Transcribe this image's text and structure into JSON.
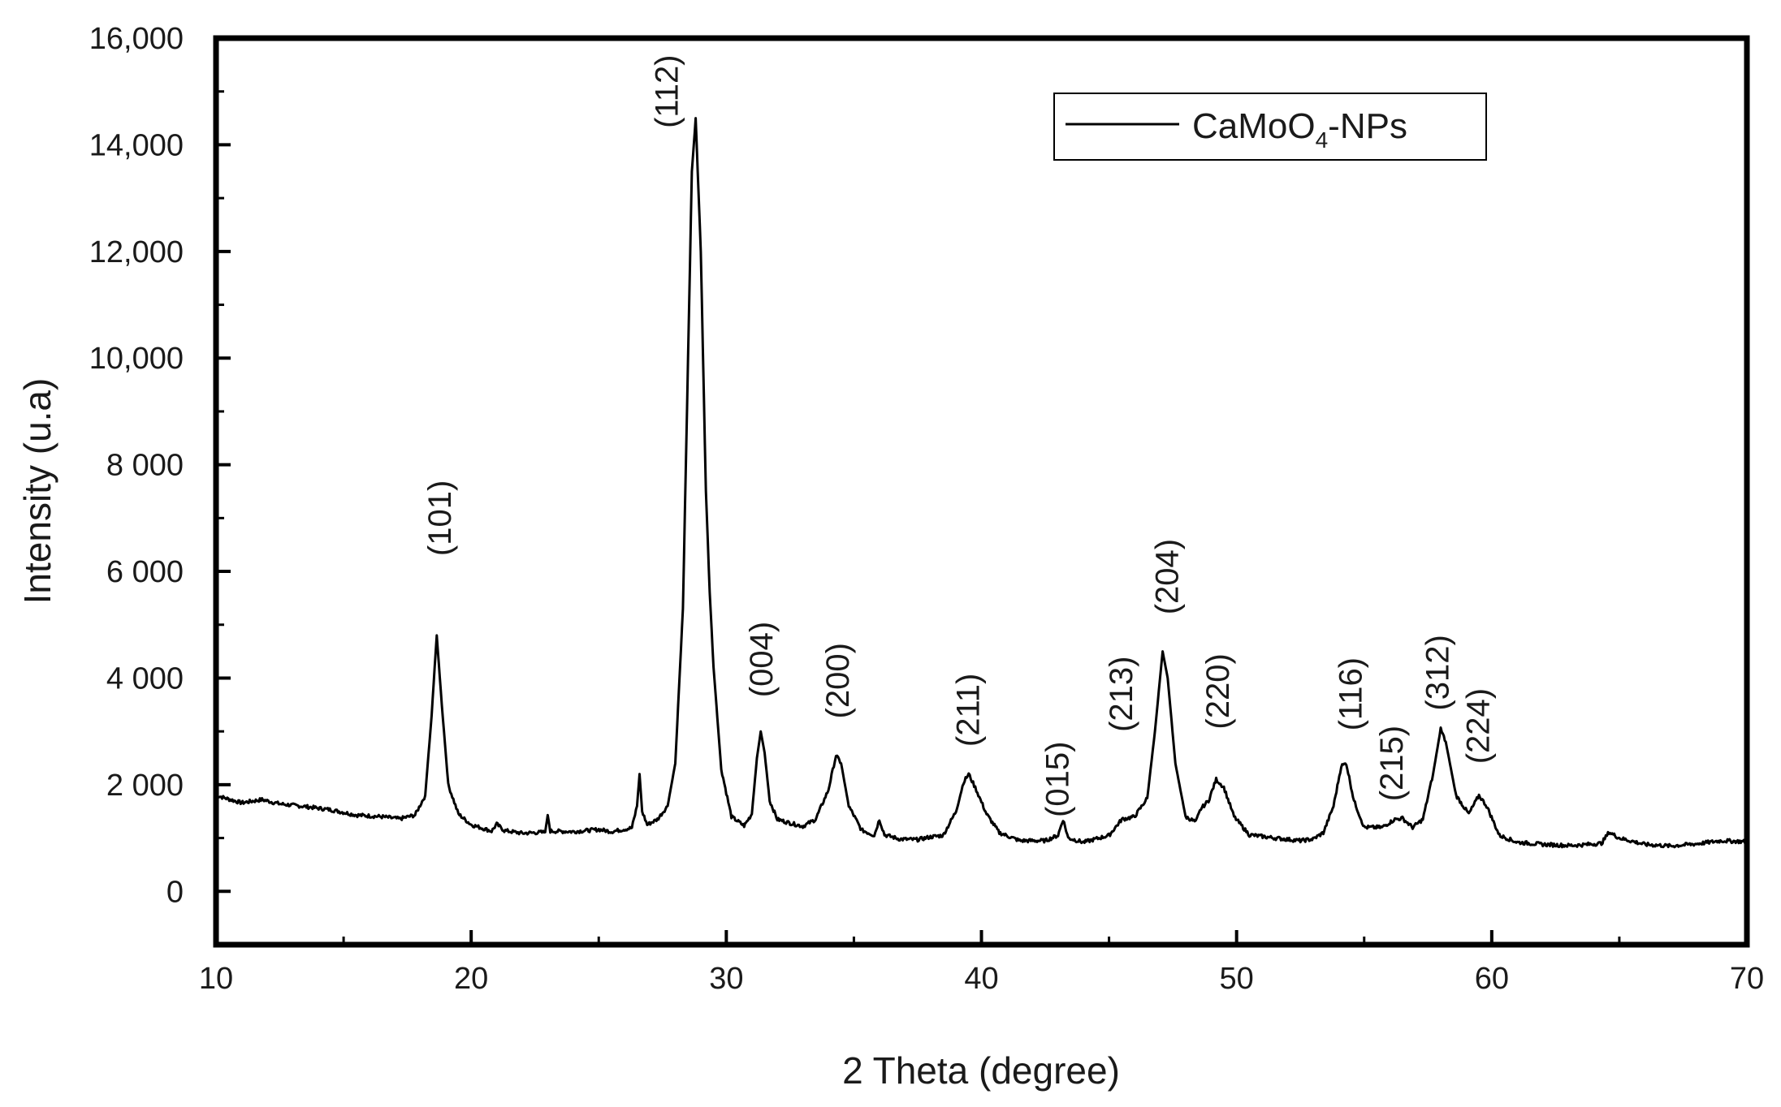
{
  "chart_data": {
    "type": "line",
    "xlabel": "2 Theta (degree)",
    "ylabel": "Intensity (u.a)",
    "xlim": [
      10,
      70
    ],
    "ylim": [
      -1000,
      16000
    ],
    "grid": false,
    "legend_position": "top-right",
    "x_ticks": [
      {
        "value": 10,
        "label": "10"
      },
      {
        "value": 20,
        "label": "20"
      },
      {
        "value": 30,
        "label": "30"
      },
      {
        "value": 40,
        "label": "40"
      },
      {
        "value": 50,
        "label": "50"
      },
      {
        "value": 60,
        "label": "60"
      },
      {
        "value": 70,
        "label": "70"
      }
    ],
    "y_ticks": [
      {
        "value": 0,
        "label": "0"
      },
      {
        "value": 2000,
        "label": "2 000"
      },
      {
        "value": 4000,
        "label": "4 000"
      },
      {
        "value": 6000,
        "label": "6 000"
      },
      {
        "value": 8000,
        "label": "8 000"
      },
      {
        "value": 10000,
        "label": "10,000"
      },
      {
        "value": 12000,
        "label": "12,000"
      },
      {
        "value": 14000,
        "label": "14,000"
      },
      {
        "value": 16000,
        "label": "16,000"
      }
    ],
    "series": [
      {
        "legend": {
          "base": "CaMoO",
          "sub": "4",
          "suffix": "-NPs"
        },
        "color": "#000000",
        "points": [
          [
            10.0,
            1800
          ],
          [
            11.0,
            1660
          ],
          [
            11.8,
            1720
          ],
          [
            12.5,
            1640
          ],
          [
            13.5,
            1590
          ],
          [
            14.5,
            1530
          ],
          [
            15.5,
            1430
          ],
          [
            16.5,
            1400
          ],
          [
            17.2,
            1360
          ],
          [
            17.8,
            1430
          ],
          [
            18.2,
            1800
          ],
          [
            18.45,
            3300
          ],
          [
            18.65,
            4800
          ],
          [
            18.85,
            3500
          ],
          [
            19.1,
            2000
          ],
          [
            19.5,
            1450
          ],
          [
            20.0,
            1250
          ],
          [
            20.8,
            1130
          ],
          [
            21.0,
            1260
          ],
          [
            21.3,
            1140
          ],
          [
            22.0,
            1090
          ],
          [
            22.9,
            1110
          ],
          [
            23.0,
            1430
          ],
          [
            23.1,
            1130
          ],
          [
            24.0,
            1120
          ],
          [
            25.0,
            1160
          ],
          [
            25.5,
            1120
          ],
          [
            26.3,
            1190
          ],
          [
            26.5,
            1600
          ],
          [
            26.6,
            2200
          ],
          [
            26.7,
            1500
          ],
          [
            26.9,
            1250
          ],
          [
            27.3,
            1350
          ],
          [
            27.7,
            1600
          ],
          [
            28.0,
            2400
          ],
          [
            28.3,
            5300
          ],
          [
            28.5,
            10000
          ],
          [
            28.65,
            13500
          ],
          [
            28.8,
            14500
          ],
          [
            29.0,
            12000
          ],
          [
            29.2,
            7500
          ],
          [
            29.35,
            5600
          ],
          [
            29.5,
            4200
          ],
          [
            29.8,
            2300
          ],
          [
            30.2,
            1400
          ],
          [
            30.7,
            1230
          ],
          [
            31.0,
            1450
          ],
          [
            31.2,
            2500
          ],
          [
            31.35,
            3000
          ],
          [
            31.5,
            2600
          ],
          [
            31.7,
            1700
          ],
          [
            32.0,
            1350
          ],
          [
            32.5,
            1280
          ],
          [
            33.0,
            1220
          ],
          [
            33.5,
            1350
          ],
          [
            34.0,
            1900
          ],
          [
            34.3,
            2550
          ],
          [
            34.5,
            2400
          ],
          [
            34.8,
            1600
          ],
          [
            35.3,
            1150
          ],
          [
            35.8,
            1050
          ],
          [
            36.0,
            1350
          ],
          [
            36.2,
            1060
          ],
          [
            36.8,
            980
          ],
          [
            37.5,
            970
          ],
          [
            38.0,
            1020
          ],
          [
            38.5,
            1050
          ],
          [
            39.0,
            1500
          ],
          [
            39.3,
            2050
          ],
          [
            39.5,
            2200
          ],
          [
            39.8,
            1900
          ],
          [
            40.2,
            1450
          ],
          [
            40.7,
            1100
          ],
          [
            41.5,
            950
          ],
          [
            42.5,
            950
          ],
          [
            43.0,
            1050
          ],
          [
            43.2,
            1350
          ],
          [
            43.4,
            1000
          ],
          [
            44.0,
            920
          ],
          [
            45.0,
            1050
          ],
          [
            45.5,
            1350
          ],
          [
            46.0,
            1400
          ],
          [
            46.5,
            1750
          ],
          [
            46.8,
            3000
          ],
          [
            47.1,
            4500
          ],
          [
            47.3,
            4000
          ],
          [
            47.6,
            2400
          ],
          [
            48.0,
            1400
          ],
          [
            48.4,
            1300
          ],
          [
            48.6,
            1550
          ],
          [
            48.9,
            1700
          ],
          [
            49.2,
            2100
          ],
          [
            49.5,
            1950
          ],
          [
            49.9,
            1400
          ],
          [
            50.5,
            1060
          ],
          [
            51.5,
            1000
          ],
          [
            52.5,
            950
          ],
          [
            53.0,
            980
          ],
          [
            53.4,
            1100
          ],
          [
            53.8,
            1600
          ],
          [
            54.1,
            2350
          ],
          [
            54.3,
            2400
          ],
          [
            54.6,
            1700
          ],
          [
            55.0,
            1200
          ],
          [
            55.7,
            1200
          ],
          [
            56.2,
            1350
          ],
          [
            56.5,
            1370
          ],
          [
            56.9,
            1200
          ],
          [
            57.3,
            1350
          ],
          [
            57.7,
            2200
          ],
          [
            58.0,
            3050
          ],
          [
            58.2,
            2800
          ],
          [
            58.6,
            1800
          ],
          [
            59.1,
            1450
          ],
          [
            59.5,
            1800
          ],
          [
            59.8,
            1600
          ],
          [
            60.3,
            1050
          ],
          [
            61.0,
            920
          ],
          [
            62.0,
            880
          ],
          [
            63.0,
            860
          ],
          [
            63.5,
            870
          ],
          [
            64.3,
            900
          ],
          [
            64.6,
            1110
          ],
          [
            65.0,
            1000
          ],
          [
            66.0,
            880
          ],
          [
            67.0,
            850
          ],
          [
            68.0,
            890
          ],
          [
            69.0,
            950
          ],
          [
            70.0,
            930
          ]
        ]
      }
    ],
    "annotations": [
      {
        "text": "(101)",
        "x": 19.2,
        "y": 7000
      },
      {
        "text": "(112)",
        "x": 28.1,
        "y": 15000
      },
      {
        "text": "(004)",
        "x": 31.8,
        "y": 4350
      },
      {
        "text": "(200)",
        "x": 34.8,
        "y": 3950
      },
      {
        "text": "(211)",
        "x": 39.9,
        "y": 3400
      },
      {
        "text": "(015)",
        "x": 43.4,
        "y": 2100
      },
      {
        "text": "(213)",
        "x": 45.9,
        "y": 3700
      },
      {
        "text": "(204)",
        "x": 47.7,
        "y": 5900
      },
      {
        "text": "(220)",
        "x": 49.7,
        "y": 3750
      },
      {
        "text": "(116)",
        "x": 54.9,
        "y": 3700
      },
      {
        "text": "(215)",
        "x": 56.5,
        "y": 2400
      },
      {
        "text": "(312)",
        "x": 58.3,
        "y": 4100
      },
      {
        "text": "(224)",
        "x": 59.9,
        "y": 3100
      }
    ]
  }
}
